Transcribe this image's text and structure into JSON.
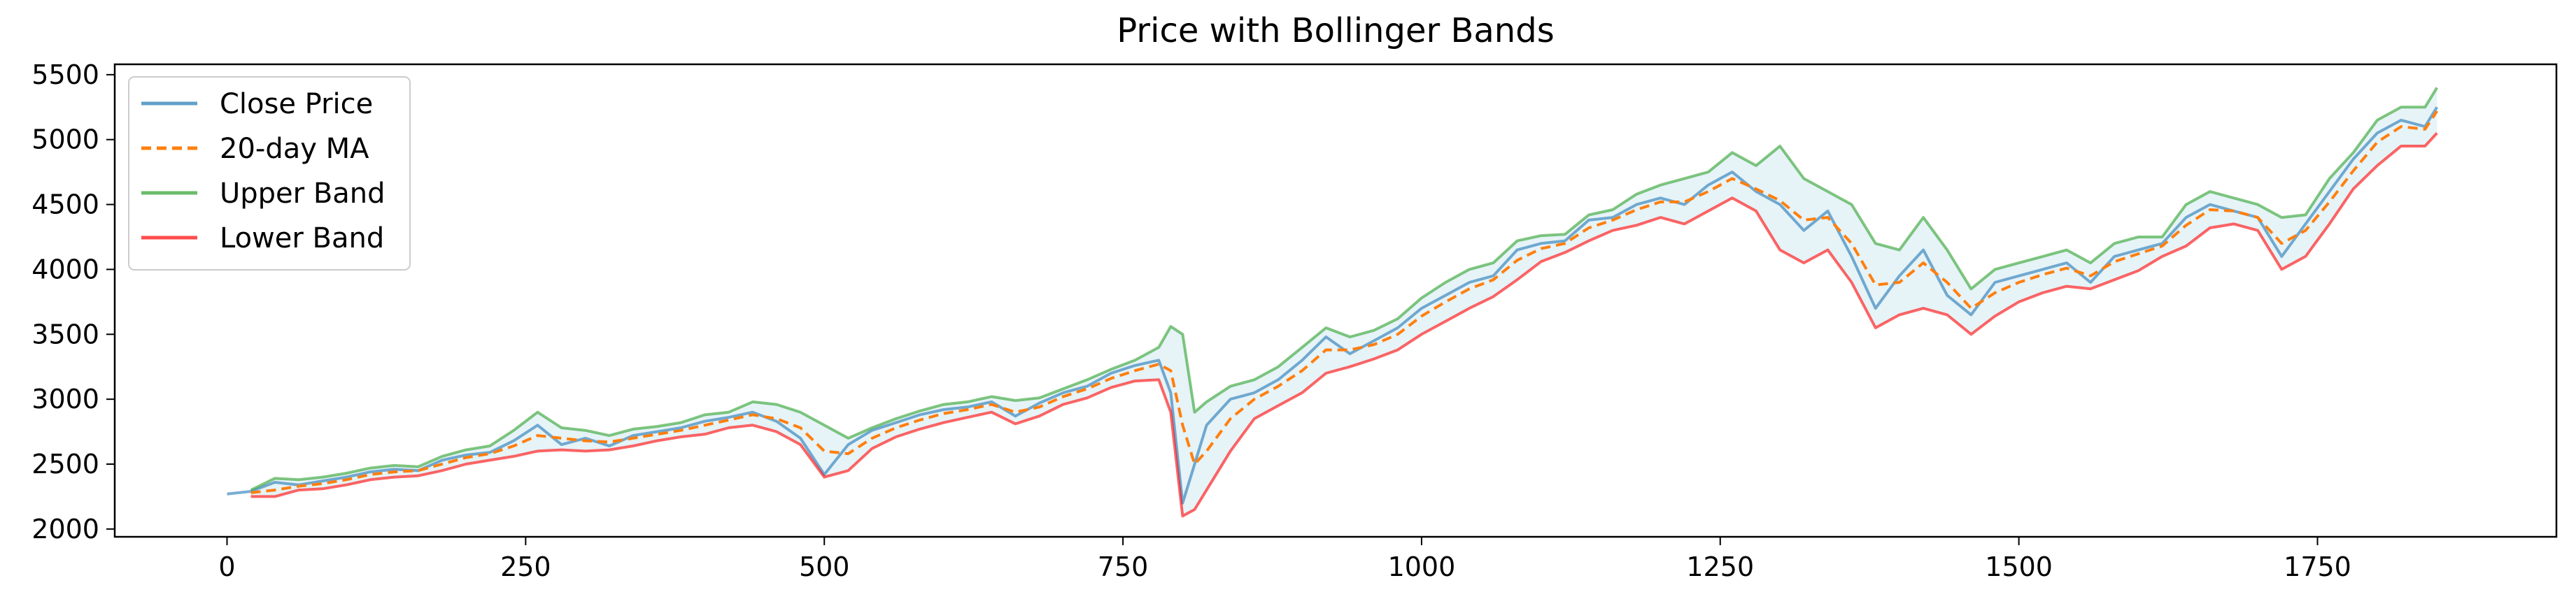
{
  "chart_data": {
    "type": "line",
    "title": "Price with Bollinger Bands",
    "xlabel": "",
    "ylabel": "",
    "xlim": [
      -94,
      1950
    ],
    "ylim": [
      1940,
      5580
    ],
    "x_ticks": [
      0,
      250,
      500,
      750,
      1000,
      1250,
      1500,
      1750
    ],
    "y_ticks": [
      2000,
      2500,
      3000,
      3500,
      4000,
      4500,
      5000,
      5500
    ],
    "grid": false,
    "legend_position": "upper-left",
    "legend": [
      {
        "label": "Close Price",
        "color": "#1f77b4",
        "style": "solid"
      },
      {
        "label": "20-day MA",
        "color": "#ff7f0e",
        "style": "dashed"
      },
      {
        "label": "Upper Band",
        "color": "#2ca02c",
        "style": "solid"
      },
      {
        "label": "Lower Band",
        "color": "#ff0000",
        "style": "solid"
      }
    ],
    "band_fill_color": "#add8e6",
    "x": [
      0,
      20,
      40,
      60,
      80,
      100,
      120,
      140,
      160,
      180,
      200,
      220,
      240,
      260,
      280,
      300,
      320,
      340,
      360,
      380,
      400,
      420,
      440,
      460,
      480,
      500,
      520,
      540,
      560,
      580,
      600,
      620,
      640,
      660,
      680,
      700,
      720,
      740,
      760,
      780,
      790,
      800,
      810,
      820,
      840,
      860,
      880,
      900,
      920,
      940,
      960,
      980,
      1000,
      1020,
      1040,
      1060,
      1080,
      1100,
      1120,
      1140,
      1160,
      1180,
      1200,
      1220,
      1240,
      1260,
      1280,
      1300,
      1320,
      1340,
      1360,
      1380,
      1400,
      1420,
      1440,
      1460,
      1480,
      1500,
      1520,
      1540,
      1560,
      1580,
      1600,
      1620,
      1640,
      1660,
      1680,
      1700,
      1720,
      1740,
      1760,
      1780,
      1800,
      1820,
      1840,
      1850
    ],
    "series": [
      {
        "name": "Close Price",
        "values": [
          2270,
          2290,
          2360,
          2340,
          2370,
          2400,
          2440,
          2460,
          2450,
          2530,
          2570,
          2590,
          2680,
          2800,
          2650,
          2700,
          2640,
          2720,
          2750,
          2780,
          2830,
          2860,
          2900,
          2830,
          2700,
          2420,
          2650,
          2760,
          2820,
          2880,
          2920,
          2940,
          2980,
          2870,
          2970,
          3050,
          3100,
          3200,
          3260,
          3300,
          3050,
          2200,
          2500,
          2800,
          3000,
          3050,
          3150,
          3300,
          3480,
          3350,
          3450,
          3550,
          3700,
          3800,
          3900,
          3950,
          4150,
          4200,
          4220,
          4380,
          4400,
          4500,
          4550,
          4500,
          4650,
          4750,
          4600,
          4500,
          4300,
          4450,
          4100,
          3700,
          3950,
          4150,
          3800,
          3650,
          3900,
          3950,
          4000,
          4050,
          3900,
          4100,
          4150,
          4200,
          4400,
          4500,
          4450,
          4400,
          4100,
          4350,
          4600,
          4850,
          5050,
          5150,
          5100,
          5250
        ]
      },
      {
        "name": "20-day MA",
        "values": [
          null,
          2280,
          2300,
          2330,
          2350,
          2380,
          2420,
          2440,
          2450,
          2500,
          2550,
          2580,
          2640,
          2720,
          2700,
          2680,
          2670,
          2700,
          2730,
          2760,
          2800,
          2840,
          2880,
          2850,
          2780,
          2600,
          2580,
          2700,
          2780,
          2840,
          2890,
          2920,
          2960,
          2900,
          2940,
          3020,
          3080,
          3160,
          3220,
          3270,
          3220,
          2800,
          2500,
          2600,
          2850,
          3000,
          3100,
          3220,
          3380,
          3380,
          3420,
          3500,
          3640,
          3750,
          3850,
          3920,
          4070,
          4160,
          4200,
          4320,
          4380,
          4460,
          4520,
          4520,
          4600,
          4700,
          4620,
          4530,
          4380,
          4400,
          4200,
          3880,
          3900,
          4050,
          3900,
          3700,
          3820,
          3900,
          3960,
          4010,
          3950,
          4060,
          4120,
          4180,
          4340,
          4460,
          4450,
          4400,
          4200,
          4300,
          4520,
          4760,
          4980,
          5100,
          5080,
          5220
        ]
      },
      {
        "name": "Upper Band",
        "values": [
          null,
          2300,
          2390,
          2380,
          2400,
          2430,
          2470,
          2490,
          2480,
          2560,
          2610,
          2640,
          2760,
          2900,
          2780,
          2760,
          2720,
          2770,
          2790,
          2820,
          2880,
          2900,
          2980,
          2960,
          2900,
          2800,
          2700,
          2780,
          2850,
          2910,
          2960,
          2980,
          3020,
          2990,
          3010,
          3080,
          3150,
          3230,
          3300,
          3400,
          3560,
          3500,
          2900,
          2980,
          3100,
          3150,
          3250,
          3400,
          3550,
          3480,
          3530,
          3620,
          3780,
          3900,
          4000,
          4050,
          4220,
          4260,
          4270,
          4420,
          4460,
          4580,
          4650,
          4700,
          4750,
          4900,
          4800,
          4950,
          4700,
          4600,
          4500,
          4200,
          4150,
          4400,
          4150,
          3850,
          4000,
          4050,
          4100,
          4150,
          4050,
          4200,
          4250,
          4250,
          4500,
          4600,
          4550,
          4500,
          4400,
          4420,
          4700,
          4900,
          5150,
          5250,
          5250,
          5400
        ]
      },
      {
        "name": "Lower Band",
        "values": [
          null,
          2250,
          2250,
          2300,
          2310,
          2340,
          2380,
          2400,
          2410,
          2450,
          2500,
          2530,
          2560,
          2600,
          2610,
          2600,
          2610,
          2640,
          2680,
          2710,
          2730,
          2780,
          2800,
          2750,
          2650,
          2400,
          2450,
          2620,
          2710,
          2770,
          2820,
          2860,
          2900,
          2810,
          2870,
          2960,
          3010,
          3090,
          3140,
          3150,
          2900,
          2100,
          2150,
          2300,
          2600,
          2850,
          2950,
          3050,
          3200,
          3250,
          3310,
          3380,
          3500,
          3600,
          3700,
          3790,
          3920,
          4060,
          4130,
          4220,
          4300,
          4340,
          4400,
          4350,
          4450,
          4550,
          4450,
          4150,
          4050,
          4150,
          3900,
          3550,
          3650,
          3700,
          3650,
          3500,
          3640,
          3750,
          3820,
          3870,
          3850,
          3920,
          3990,
          4100,
          4180,
          4320,
          4350,
          4300,
          4000,
          4100,
          4350,
          4620,
          4800,
          4950,
          4950,
          5050
        ]
      }
    ]
  }
}
